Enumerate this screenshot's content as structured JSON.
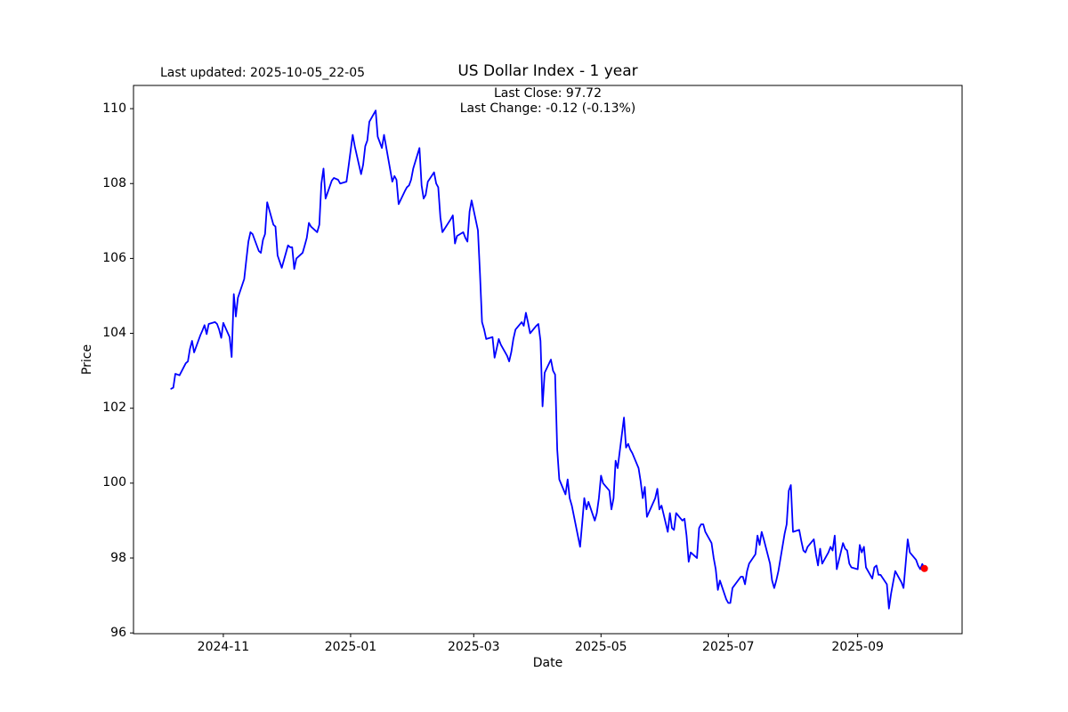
{
  "annotations": {
    "last_updated": "Last updated: 2025-10-05_22-05"
  },
  "chart_data": {
    "type": "line",
    "title": "US Dollar Index - 1 year",
    "subtitle": [
      "Last Close: 97.72",
      "Last Change: -0.12 (-0.13%)"
    ],
    "xlabel": "Date",
    "ylabel": "Price",
    "last_close": 97.72,
    "last_change": "-0.12 (-0.13%)",
    "grid": false,
    "legend": "none",
    "ylim": [
      95.98,
      110.62
    ],
    "yticks": [
      96,
      98,
      100,
      102,
      104,
      106,
      108,
      110
    ],
    "xticks": [
      {
        "value": "2024-11-01",
        "label": "2024-11"
      },
      {
        "value": "2025-01-01",
        "label": "2025-01"
      },
      {
        "value": "2025-03-01",
        "label": "2025-03"
      },
      {
        "value": "2025-05-01",
        "label": "2025-05"
      },
      {
        "value": "2025-07-01",
        "label": "2025-07"
      },
      {
        "value": "2025-09-01",
        "label": "2025-09"
      }
    ],
    "x_margin_frac": 0.05,
    "colors": {
      "line": "#0000ff",
      "marker": "#ff0000",
      "axes": "#000000",
      "text": "#000000",
      "background": "#ffffff"
    },
    "series": [
      {
        "name": "US Dollar Index",
        "dates": [
          "2024-10-07",
          "2024-10-08",
          "2024-10-09",
          "2024-10-10",
          "2024-10-11",
          "2024-10-14",
          "2024-10-15",
          "2024-10-16",
          "2024-10-17",
          "2024-10-18",
          "2024-10-21",
          "2024-10-22",
          "2024-10-23",
          "2024-10-24",
          "2024-10-25",
          "2024-10-28",
          "2024-10-29",
          "2024-10-30",
          "2024-10-31",
          "2024-11-01",
          "2024-11-04",
          "2024-11-05",
          "2024-11-06",
          "2024-11-07",
          "2024-11-08",
          "2024-11-11",
          "2024-11-12",
          "2024-11-13",
          "2024-11-14",
          "2024-11-15",
          "2024-11-18",
          "2024-11-19",
          "2024-11-20",
          "2024-11-21",
          "2024-11-22",
          "2024-11-25",
          "2024-11-26",
          "2024-11-27",
          "2024-11-29",
          "2024-12-02",
          "2024-12-03",
          "2024-12-04",
          "2024-12-05",
          "2024-12-06",
          "2024-12-09",
          "2024-12-10",
          "2024-12-11",
          "2024-12-12",
          "2024-12-13",
          "2024-12-16",
          "2024-12-17",
          "2024-12-18",
          "2024-12-19",
          "2024-12-20",
          "2024-12-23",
          "2024-12-24",
          "2024-12-26",
          "2024-12-27",
          "2024-12-30",
          "2024-12-31",
          "2025-01-02",
          "2025-01-03",
          "2025-01-06",
          "2025-01-07",
          "2025-01-08",
          "2025-01-09",
          "2025-01-10",
          "2025-01-13",
          "2025-01-14",
          "2025-01-15",
          "2025-01-16",
          "2025-01-17",
          "2025-01-21",
          "2025-01-22",
          "2025-01-23",
          "2025-01-24",
          "2025-01-27",
          "2025-01-28",
          "2025-01-29",
          "2025-01-30",
          "2025-01-31",
          "2025-02-03",
          "2025-02-04",
          "2025-02-05",
          "2025-02-06",
          "2025-02-07",
          "2025-02-10",
          "2025-02-11",
          "2025-02-12",
          "2025-02-13",
          "2025-02-14",
          "2025-02-18",
          "2025-02-19",
          "2025-02-20",
          "2025-02-21",
          "2025-02-24",
          "2025-02-25",
          "2025-02-26",
          "2025-02-27",
          "2025-02-28",
          "2025-03-03",
          "2025-03-04",
          "2025-03-05",
          "2025-03-06",
          "2025-03-07",
          "2025-03-10",
          "2025-03-11",
          "2025-03-12",
          "2025-03-13",
          "2025-03-14",
          "2025-03-17",
          "2025-03-18",
          "2025-03-19",
          "2025-03-20",
          "2025-03-21",
          "2025-03-24",
          "2025-03-25",
          "2025-03-26",
          "2025-03-27",
          "2025-03-28",
          "2025-03-31",
          "2025-04-01",
          "2025-04-02",
          "2025-04-03",
          "2025-04-04",
          "2025-04-07",
          "2025-04-08",
          "2025-04-09",
          "2025-04-10",
          "2025-04-11",
          "2025-04-14",
          "2025-04-15",
          "2025-04-16",
          "2025-04-17",
          "2025-04-21",
          "2025-04-22",
          "2025-04-23",
          "2025-04-24",
          "2025-04-25",
          "2025-04-28",
          "2025-04-29",
          "2025-04-30",
          "2025-05-01",
          "2025-05-02",
          "2025-05-05",
          "2025-05-06",
          "2025-05-07",
          "2025-05-08",
          "2025-05-09",
          "2025-05-12",
          "2025-05-13",
          "2025-05-14",
          "2025-05-15",
          "2025-05-16",
          "2025-05-19",
          "2025-05-20",
          "2025-05-21",
          "2025-05-22",
          "2025-05-23",
          "2025-05-27",
          "2025-05-28",
          "2025-05-29",
          "2025-05-30",
          "2025-06-02",
          "2025-06-03",
          "2025-06-04",
          "2025-06-05",
          "2025-06-06",
          "2025-06-09",
          "2025-06-10",
          "2025-06-11",
          "2025-06-12",
          "2025-06-13",
          "2025-06-16",
          "2025-06-17",
          "2025-06-18",
          "2025-06-19",
          "2025-06-20",
          "2025-06-23",
          "2025-06-24",
          "2025-06-25",
          "2025-06-26",
          "2025-06-27",
          "2025-06-30",
          "2025-07-01",
          "2025-07-02",
          "2025-07-03",
          "2025-07-07",
          "2025-07-08",
          "2025-07-09",
          "2025-07-10",
          "2025-07-11",
          "2025-07-14",
          "2025-07-15",
          "2025-07-16",
          "2025-07-17",
          "2025-07-18",
          "2025-07-21",
          "2025-07-22",
          "2025-07-23",
          "2025-07-24",
          "2025-07-25",
          "2025-07-28",
          "2025-07-29",
          "2025-07-30",
          "2025-07-31",
          "2025-08-01",
          "2025-08-04",
          "2025-08-05",
          "2025-08-06",
          "2025-08-07",
          "2025-08-08",
          "2025-08-11",
          "2025-08-12",
          "2025-08-13",
          "2025-08-14",
          "2025-08-15",
          "2025-08-18",
          "2025-08-19",
          "2025-08-20",
          "2025-08-21",
          "2025-08-22",
          "2025-08-25",
          "2025-08-26",
          "2025-08-27",
          "2025-08-28",
          "2025-08-29",
          "2025-09-01",
          "2025-09-02",
          "2025-09-03",
          "2025-09-04",
          "2025-09-05",
          "2025-09-08",
          "2025-09-09",
          "2025-09-10",
          "2025-09-11",
          "2025-09-12",
          "2025-09-15",
          "2025-09-16",
          "2025-09-17",
          "2025-09-18",
          "2025-09-19",
          "2025-09-22",
          "2025-09-23",
          "2025-09-24",
          "2025-09-25",
          "2025-09-26",
          "2025-09-29",
          "2025-09-30",
          "2025-10-01",
          "2025-10-02",
          "2025-10-03"
        ],
        "values": [
          102.52,
          102.55,
          102.92,
          102.9,
          102.88,
          103.2,
          103.25,
          103.58,
          103.8,
          103.49,
          103.95,
          104.08,
          104.22,
          103.98,
          104.25,
          104.3,
          104.25,
          104.1,
          103.88,
          104.28,
          103.9,
          103.37,
          105.05,
          104.45,
          104.95,
          105.45,
          105.95,
          106.45,
          106.7,
          106.65,
          106.2,
          106.15,
          106.5,
          106.65,
          107.5,
          106.9,
          106.85,
          106.08,
          105.75,
          106.35,
          106.3,
          106.3,
          105.72,
          106.0,
          106.15,
          106.35,
          106.55,
          106.95,
          106.85,
          106.7,
          106.9,
          108.0,
          108.4,
          107.6,
          108.08,
          108.15,
          108.1,
          108.0,
          108.05,
          108.45,
          109.3,
          109.0,
          108.25,
          108.5,
          109.0,
          109.15,
          109.65,
          109.95,
          109.25,
          109.1,
          108.95,
          109.3,
          108.05,
          108.2,
          108.1,
          107.45,
          107.8,
          107.9,
          107.95,
          108.1,
          108.4,
          108.95,
          107.95,
          107.6,
          107.7,
          108.05,
          108.3,
          108.0,
          107.9,
          107.1,
          106.7,
          107.05,
          107.15,
          106.4,
          106.6,
          106.7,
          106.55,
          106.45,
          107.25,
          107.55,
          106.75,
          105.6,
          104.3,
          104.1,
          103.85,
          103.9,
          103.35,
          103.6,
          103.85,
          103.7,
          103.4,
          103.25,
          103.5,
          103.85,
          104.1,
          104.3,
          104.2,
          104.55,
          104.3,
          104.0,
          104.2,
          104.25,
          103.8,
          102.05,
          102.95,
          103.3,
          103.0,
          102.9,
          100.9,
          100.1,
          99.7,
          100.1,
          99.6,
          99.4,
          98.3,
          98.95,
          99.6,
          99.3,
          99.5,
          99.0,
          99.2,
          99.6,
          100.2,
          100.0,
          99.8,
          99.3,
          99.6,
          100.6,
          100.4,
          101.75,
          100.95,
          101.05,
          100.9,
          100.8,
          100.4,
          100.05,
          99.6,
          99.9,
          99.1,
          99.6,
          99.85,
          99.3,
          99.4,
          98.7,
          99.2,
          98.8,
          98.75,
          99.2,
          99.0,
          99.05,
          98.6,
          97.9,
          98.15,
          98.0,
          98.8,
          98.9,
          98.9,
          98.7,
          98.4,
          98.0,
          97.7,
          97.15,
          97.4,
          96.9,
          96.8,
          96.8,
          97.2,
          97.5,
          97.5,
          97.3,
          97.65,
          97.85,
          98.1,
          98.6,
          98.35,
          98.7,
          98.5,
          97.85,
          97.4,
          97.2,
          97.4,
          97.65,
          98.65,
          98.9,
          99.8,
          99.95,
          98.7,
          98.75,
          98.45,
          98.2,
          98.15,
          98.3,
          98.5,
          98.1,
          97.8,
          98.25,
          97.85,
          98.15,
          98.3,
          98.2,
          98.6,
          97.7,
          98.4,
          98.25,
          98.2,
          97.85,
          97.75,
          97.7,
          98.35,
          98.15,
          98.3,
          97.75,
          97.45,
          97.75,
          97.8,
          97.55,
          97.55,
          97.3,
          96.65,
          97.05,
          97.35,
          97.65,
          97.35,
          97.2,
          97.85,
          98.5,
          98.15,
          97.95,
          97.8,
          97.7,
          97.84,
          97.72
        ]
      }
    ]
  }
}
